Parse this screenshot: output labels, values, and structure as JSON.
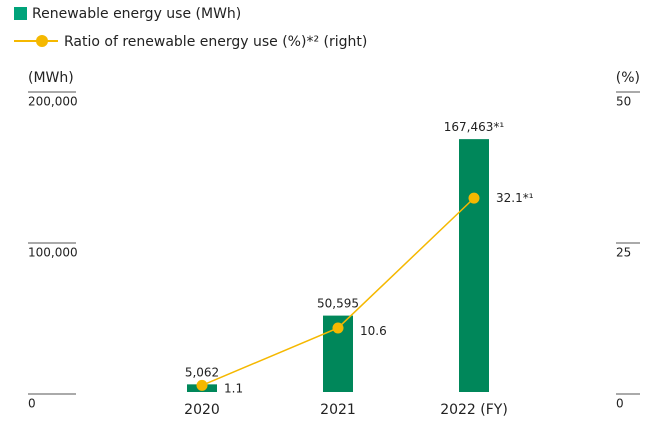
{
  "chart_data": {
    "type": "bar",
    "axis_label": "(MWh)",
    "axis_label_y2": "(%)",
    "categories": [
      "2020",
      "2021",
      "2022 (FY)"
    ],
    "series": [
      {
        "name": "Renewable energy use (MWh)",
        "type": "bar",
        "color": "#00875a",
        "values": [
          5062,
          50595,
          167463
        ],
        "value_labels": [
          "5,062",
          "50,595",
          "167,463"
        ],
        "value_notes": [
          null,
          null,
          "*¹"
        ]
      },
      {
        "name": "Ratio of renewable energy use (%)*² (right)",
        "type": "line",
        "axis": "y2",
        "color": "#f5b800",
        "values": [
          1.1,
          10.6,
          32.1
        ],
        "value_labels": [
          "1.1",
          "10.6",
          "32.1"
        ],
        "value_notes": [
          null,
          null,
          "*¹"
        ]
      }
    ],
    "ylim": [
      0,
      200000
    ],
    "yticks": [
      0,
      {
        "value": 100000,
        "label": "100,000"
      },
      {
        "value": 200000,
        "label": "200,000"
      }
    ],
    "y2lim": [
      0,
      50
    ],
    "y2ticks": [
      0,
      25,
      50
    ]
  }
}
